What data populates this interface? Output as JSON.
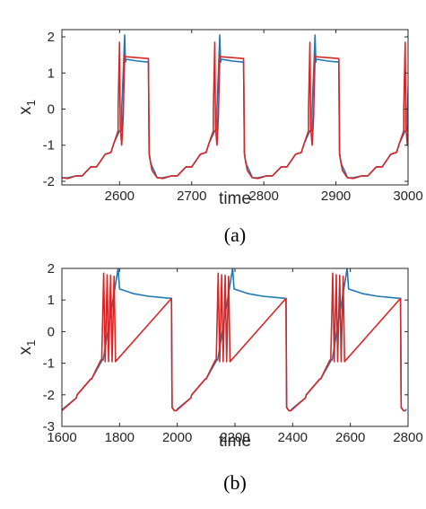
{
  "figure": {
    "panels": [
      {
        "label": "(a)",
        "chart_data": {
          "type": "line",
          "title": "",
          "xlabel": "time",
          "ylabel_base": "x",
          "ylabel_sub": "1",
          "xlim": [
            2520,
            3000
          ],
          "ylim": [
            -2.1,
            2.2
          ],
          "xticks": [
            2600,
            2700,
            2800,
            2900,
            3000
          ],
          "yticks": [
            2,
            1,
            0,
            -1,
            -2
          ],
          "grid": false,
          "legend": "none",
          "colors": {
            "series_1": "#1f77b4",
            "series_2": "#d62728"
          },
          "period": 132,
          "series": [
            {
              "values_pattern": [
                [
                  2520,
                  -1.9
                ],
                [
                  2540,
                  -1.85
                ],
                [
                  2560,
                  -1.6
                ],
                [
                  2580,
                  -1.25
                ],
                [
                  2592,
                  -0.95
                ],
                [
                  2600,
                  -0.6
                ],
                [
                  2603,
                  0.0
                ],
                [
                  2605,
                  1.0
                ],
                [
                  2607,
                  2.05
                ],
                [
                  2608,
                  1.3
                ],
                [
                  2609,
                  1.38
                ],
                [
                  2625,
                  1.33
                ],
                [
                  2640,
                  1.3
                ],
                [
                  2641,
                  -1.2
                ],
                [
                  2643,
                  -1.5
                ],
                [
                  2650,
                  -1.8
                ],
                [
                  2660,
                  -1.9
                ],
                [
                  2680,
                  -1.85
                ],
                [
                  2700,
                  -1.6
                ],
                [
                  2720,
                  -1.2
                ],
                [
                  2735,
                  -0.6
                ],
                [
                  2739,
                  2.05
                ],
                [
                  2741,
                  1.38
                ],
                [
                  2772,
                  1.3
                ]
              ]
            },
            {
              "values_pattern": [
                [
                  2520,
                  -1.9
                ],
                [
                  2540,
                  -1.85
                ],
                [
                  2560,
                  -1.6
                ],
                [
                  2580,
                  -1.25
                ],
                [
                  2592,
                  -0.95
                ],
                [
                  2598,
                  0.0
                ],
                [
                  2600,
                  1.85
                ],
                [
                  2601,
                  -0.5
                ],
                [
                  2603,
                  -1.0
                ],
                [
                  2605,
                  -0.2
                ],
                [
                  2607,
                  1.5
                ],
                [
                  2608,
                  1.45
                ],
                [
                  2640,
                  1.4
                ],
                [
                  2641,
                  -1.25
                ],
                [
                  2645,
                  -1.7
                ],
                [
                  2660,
                  -1.92
                ],
                [
                  2680,
                  -1.85
                ],
                [
                  2700,
                  -1.6
                ],
                [
                  2720,
                  -1.2
                ],
                [
                  2730,
                  -0.6
                ],
                [
                  2732,
                  1.85
                ],
                [
                  2737,
                  -0.2
                ],
                [
                  2739,
                  1.5
                ],
                [
                  2772,
                  1.4
                ],
                [
                  2773,
                  -1.25
                ]
              ]
            }
          ]
        }
      },
      {
        "label": "(b)",
        "chart_data": {
          "type": "line",
          "title": "",
          "xlabel": "time",
          "ylabel_base": "x",
          "ylabel_sub": "1",
          "xlim": [
            1600,
            2800
          ],
          "ylim": [
            -3,
            2
          ],
          "xticks": [
            1600,
            1800,
            2000,
            2200,
            2400,
            2600,
            2800
          ],
          "yticks": [
            2,
            1,
            0,
            -1,
            -2,
            -3
          ],
          "grid": false,
          "legend": "none",
          "colors": {
            "series_1": "#1f77b4",
            "series_2": "#d62728"
          },
          "period": 397,
          "series": [
            {
              "values_pattern": [
                [
                  1600,
                  -2.5
                ],
                [
                  1650,
                  -2.1
                ],
                [
                  1700,
                  -1.5
                ],
                [
                  1740,
                  -0.9
                ],
                [
                  1795,
                  2.0
                ],
                [
                  1800,
                  1.35
                ],
                [
                  1850,
                  1.2
                ],
                [
                  1900,
                  1.12
                ],
                [
                  1980,
                  1.05
                ],
                [
                  1982,
                  -2.4
                ],
                [
                  1990,
                  -2.5
                ],
                [
                  2000,
                  -2.45
                ],
                [
                  2050,
                  -2.0
                ],
                [
                  2100,
                  -1.5
                ],
                [
                  2140,
                  -0.9
                ],
                [
                  2192,
                  2.0
                ],
                [
                  2197,
                  1.35
                ],
                [
                  2377,
                  1.05
                ]
              ]
            },
            {
              "values_pattern": [
                [
                  1600,
                  -2.5
                ],
                [
                  1650,
                  -2.1
                ],
                [
                  1700,
                  -1.5
                ],
                [
                  1735,
                  -0.9
                ],
                [
                  1745,
                  1.85
                ],
                [
                  1750,
                  -0.95
                ],
                [
                  1757,
                  1.8
                ],
                [
                  1762,
                  -0.95
                ],
                [
                  1769,
                  1.78
                ],
                [
                  1774,
                  -0.95
                ],
                [
                  1781,
                  1.75
                ],
                [
                  1786,
                  -0.95
                ],
                [
                  1980,
                  1.05
                ],
                [
                  1982,
                  -2.4
                ],
                [
                  1990,
                  -2.5
                ],
                [
                  2050,
                  -2.0
                ],
                [
                  2100,
                  -1.5
                ],
                [
                  2135,
                  -0.9
                ],
                [
                  2142,
                  1.85
                ]
              ]
            }
          ]
        }
      }
    ]
  }
}
